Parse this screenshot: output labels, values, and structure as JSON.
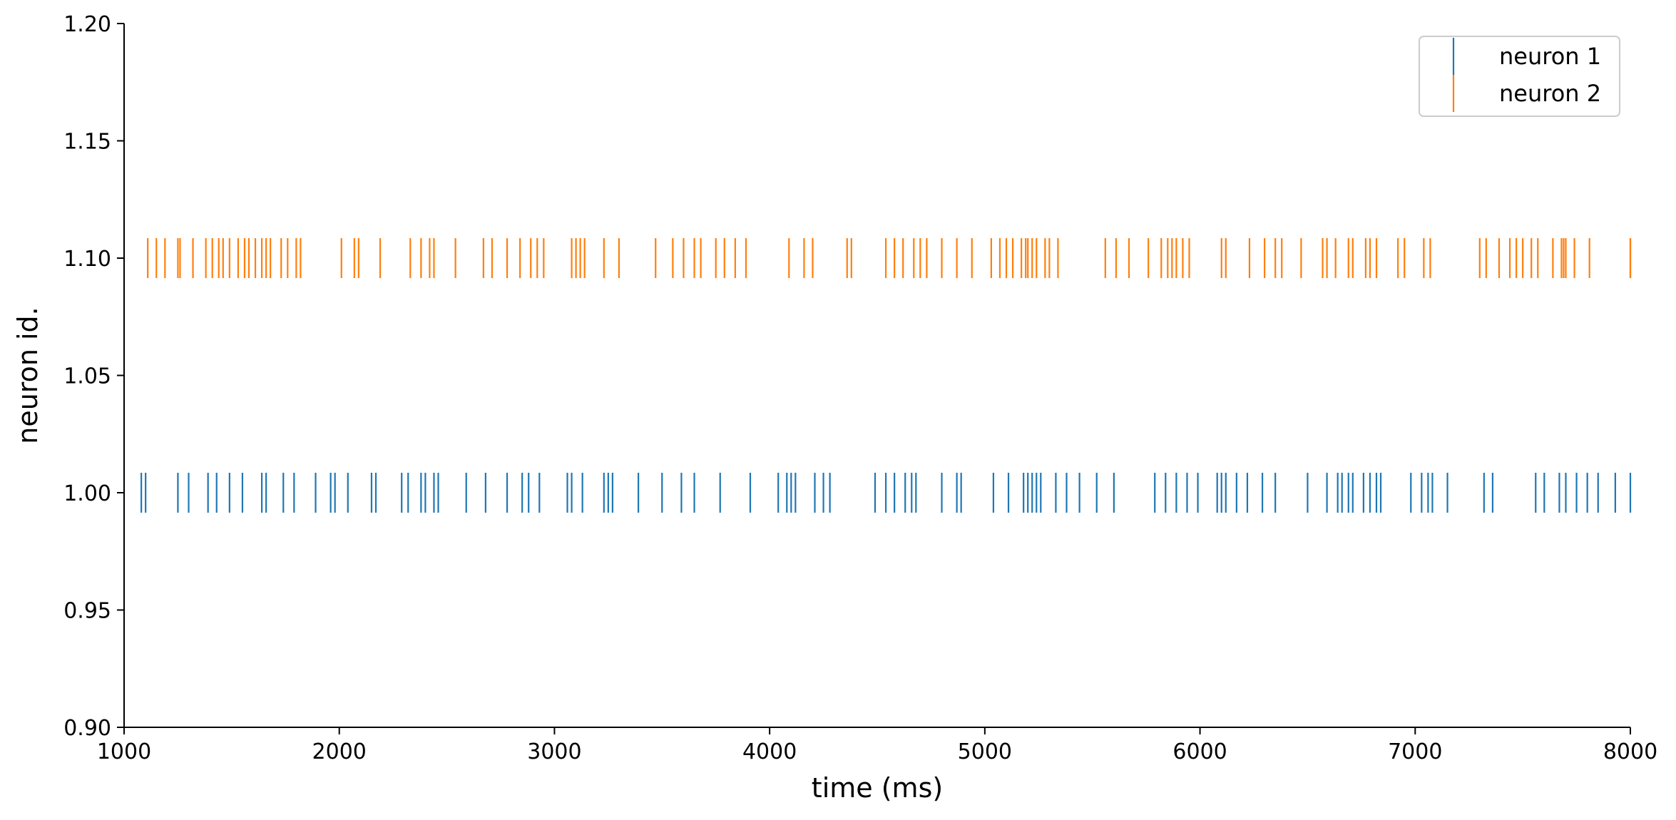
{
  "chart_data": {
    "type": "scatter",
    "subtype": "raster / eventplot",
    "title": "",
    "xlabel": "time (ms)",
    "ylabel": "neuron id.",
    "xlim": [
      1000,
      8000
    ],
    "ylim": [
      0.9,
      1.2
    ],
    "x_ticks": [
      "1000",
      "2000",
      "3000",
      "4000",
      "5000",
      "6000",
      "7000",
      "8000"
    ],
    "y_ticks": [
      "0.90",
      "0.95",
      "1.00",
      "1.05",
      "1.10",
      "1.15",
      "1.20"
    ],
    "grid": false,
    "legend_position": "top-right",
    "series": [
      {
        "name": "neuron 1",
        "color": "#1f77b4",
        "y": 1.0,
        "spikes": [
          1080,
          1100,
          1250,
          1300,
          1390,
          1430,
          1490,
          1550,
          1640,
          1660,
          1740,
          1790,
          1890,
          1960,
          1980,
          2040,
          2150,
          2170,
          2290,
          2320,
          2380,
          2400,
          2440,
          2460,
          2590,
          2680,
          2780,
          2850,
          2880,
          2930,
          3060,
          3080,
          3130,
          3230,
          3250,
          3270,
          3390,
          3500,
          3590,
          3650,
          3770,
          3910,
          4040,
          4080,
          4100,
          4120,
          4210,
          4250,
          4280,
          4490,
          4540,
          4580,
          4630,
          4660,
          4680,
          4800,
          4870,
          4890,
          5040,
          5110,
          5180,
          5200,
          5220,
          5240,
          5260,
          5330,
          5380,
          5440,
          5520,
          5600,
          5790,
          5840,
          5890,
          5940,
          5990,
          6080,
          6100,
          6120,
          6170,
          6220,
          6290,
          6350,
          6500,
          6590,
          6640,
          6660,
          6690,
          6710,
          6760,
          6790,
          6820,
          6840,
          6980,
          7030,
          7060,
          7080,
          7150,
          7320,
          7360,
          7560,
          7600,
          7670,
          7700,
          7750,
          7800,
          7850,
          7930,
          8000
        ]
      },
      {
        "name": "neuron 2",
        "color": "#ff7f0e",
        "y": 1.1,
        "spikes": [
          1110,
          1150,
          1190,
          1250,
          1260,
          1320,
          1380,
          1410,
          1440,
          1460,
          1490,
          1530,
          1560,
          1580,
          1610,
          1640,
          1660,
          1680,
          1730,
          1760,
          1800,
          1820,
          2010,
          2070,
          2090,
          2190,
          2330,
          2380,
          2420,
          2440,
          2540,
          2670,
          2710,
          2780,
          2840,
          2890,
          2920,
          2950,
          3080,
          3100,
          3120,
          3140,
          3230,
          3300,
          3470,
          3550,
          3600,
          3650,
          3680,
          3750,
          3790,
          3840,
          3890,
          4090,
          4160,
          4200,
          4360,
          4380,
          4540,
          4580,
          4620,
          4670,
          4700,
          4730,
          4800,
          4870,
          4940,
          5030,
          5070,
          5100,
          5130,
          5170,
          5190,
          5200,
          5220,
          5240,
          5280,
          5300,
          5340,
          5560,
          5610,
          5670,
          5760,
          5820,
          5850,
          5870,
          5890,
          5920,
          5950,
          6100,
          6120,
          6230,
          6300,
          6350,
          6380,
          6470,
          6570,
          6590,
          6630,
          6690,
          6710,
          6770,
          6790,
          6820,
          6920,
          6950,
          7040,
          7070,
          7300,
          7330,
          7390,
          7440,
          7470,
          7500,
          7540,
          7570,
          7640,
          7680,
          7690,
          7700,
          7740,
          7810,
          8000,
          8010
        ]
      }
    ]
  }
}
